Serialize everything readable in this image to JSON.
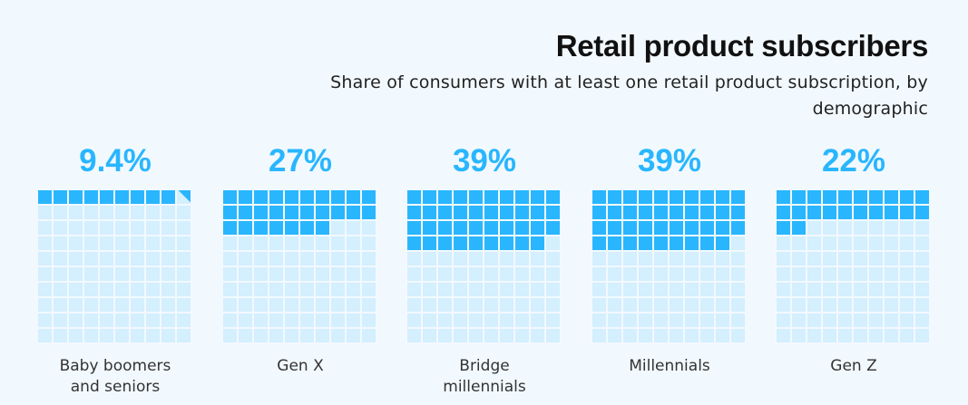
{
  "title": "Retail product subscribers",
  "subtitle": "Share of consumers with at least one retail product subscription, by demographic",
  "chart_data": {
    "type": "waffle",
    "title": "Retail product subscribers",
    "subtitle": "Share of consumers with at least one retail product subscription, by demographic",
    "grid": "10x10",
    "unit": "%",
    "categories": [
      "Baby boomers and seniors",
      "Gen X",
      "Bridge millennials",
      "Millennials",
      "Gen Z"
    ],
    "values": [
      9.4,
      27,
      39,
      39,
      22
    ],
    "value_labels": [
      "9.4%",
      "27%",
      "39%",
      "39%",
      "22%"
    ],
    "colors": {
      "filled": "#29b6ff",
      "empty": "#d4effe",
      "value_text": "#29b6ff"
    }
  }
}
